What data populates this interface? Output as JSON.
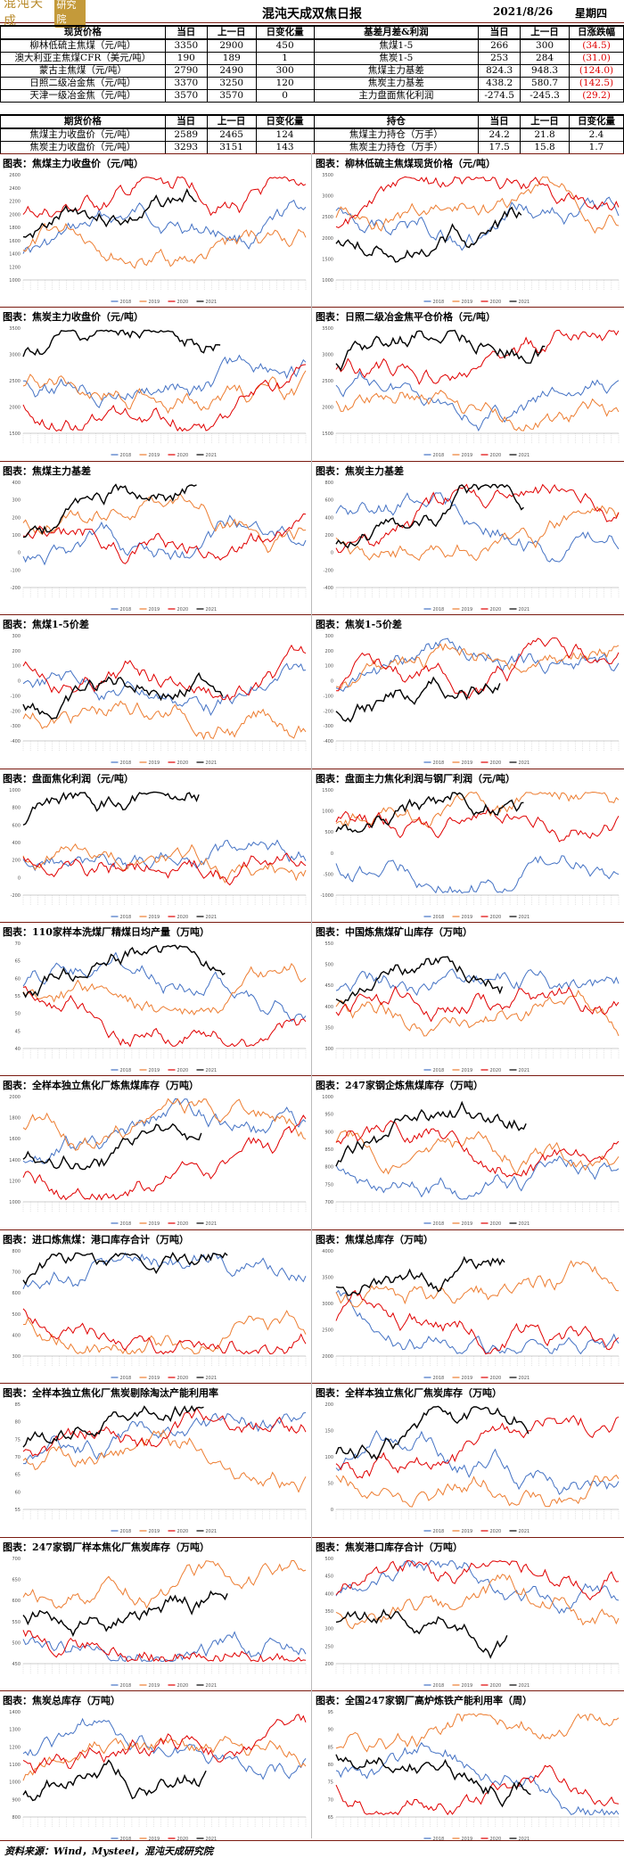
{
  "header": {
    "logo_text": "混沌天成",
    "logo_badge": "研究院",
    "title": "混沌天成双焦日报",
    "date": "2021/8/26",
    "weekday": "星期四"
  },
  "spot_table": {
    "headers": [
      "现货价格",
      "当日",
      "上一日",
      "日变化量",
      "基差月差&利润",
      "当日",
      "上一日",
      "日涨跌幅"
    ],
    "rows": [
      {
        "name": "柳林低硫主焦煤（元/吨）",
        "cur": "3350",
        "prev": "2900",
        "chg": "450",
        "name2": "焦煤1-5",
        "cur2": "266",
        "prev2": "300",
        "chg2": "(34.5)"
      },
      {
        "name": "澳大利亚主焦煤CFR（美元/吨）",
        "cur": "190",
        "prev": "189",
        "chg": "1",
        "name2": "焦炭1-5",
        "cur2": "253",
        "prev2": "284",
        "chg2": "(31.0)"
      },
      {
        "name": "蒙古主焦煤（元/吨）",
        "cur": "2790",
        "prev": "2490",
        "chg": "300",
        "name2": "焦煤主力基差",
        "cur2": "824.3",
        "prev2": "948.3",
        "chg2": "(124.0)"
      },
      {
        "name": "日照二级冶金焦（元/吨）",
        "cur": "3370",
        "prev": "3250",
        "chg": "120",
        "name2": "焦炭主力基差",
        "cur2": "438.2",
        "prev2": "580.7",
        "chg2": "(142.5)"
      },
      {
        "name": "天津一级冶金焦（元/吨）",
        "cur": "3570",
        "prev": "3570",
        "chg": "0",
        "name2": "主力盘面焦化利润",
        "cur2": "-274.5",
        "prev2": "-245.3",
        "chg2": "(29.2)"
      }
    ]
  },
  "futures_table": {
    "headers": [
      "期货价格",
      "当日",
      "上一日",
      "日变化量",
      "持仓",
      "当日",
      "上一日",
      "日变化量"
    ],
    "rows": [
      {
        "name": "焦煤主力收盘价（元/吨）",
        "cur": "2589",
        "prev": "2465",
        "chg": "124",
        "name2": "焦煤主力持仓（万手）",
        "cur2": "24.2",
        "prev2": "21.8",
        "chg2": "2.4"
      },
      {
        "name": "焦炭主力收盘价（元/吨）",
        "cur": "3293",
        "prev": "3151",
        "chg": "143",
        "name2": "焦炭主力持仓（万手）",
        "cur2": "17.5",
        "prev2": "15.8",
        "chg2": "1.7"
      }
    ]
  },
  "legend": [
    "2018",
    "2019",
    "2020",
    "2021"
  ],
  "series_colors": {
    "s2018": "#4472c4",
    "s2019": "#ed7d31",
    "s2020": "#e00000",
    "s2021": "#000000"
  },
  "charts": [
    {
      "title": "图表：焦煤主力收盘价（元/吨）",
      "y_ticks": [
        "2600",
        "2400",
        "2200",
        "2000",
        "1800",
        "1600",
        "1400",
        "1200",
        "1000"
      ]
    },
    {
      "title": "图表：柳林低硫主焦煤现货价格（元/吨）",
      "y_ticks": [
        "3500",
        "3000",
        "2500",
        "2000",
        "1500",
        "1000"
      ]
    },
    {
      "title": "图表：焦炭主力收盘价（元/吨）",
      "y_ticks": [
        "3500",
        "3000",
        "2500",
        "2000",
        "1500"
      ]
    },
    {
      "title": "图表：日照二级冶金焦平仓价格（元/吨）",
      "y_ticks": [
        "3500",
        "3000",
        "2500",
        "2000",
        "1500"
      ]
    },
    {
      "title": "图表：焦煤主力基差",
      "y_ticks": [
        "400",
        "300",
        "200",
        "100",
        "0",
        "-100",
        "-200"
      ]
    },
    {
      "title": "图表：焦炭主力基差",
      "y_ticks": [
        "800",
        "600",
        "400",
        "200",
        "0",
        "-200",
        "-400"
      ]
    },
    {
      "title": "图表：焦煤1-5价差",
      "y_ticks": [
        "300",
        "200",
        "100",
        "0",
        "-100",
        "-200",
        "-300",
        "-400"
      ]
    },
    {
      "title": "图表：焦炭1-5价差",
      "y_ticks": [
        "300",
        "200",
        "100",
        "0",
        "-100",
        "-200",
        "-300",
        "-400"
      ]
    },
    {
      "title": "图表：盘面焦化利润（元/吨）",
      "y_ticks": [
        "1000",
        "800",
        "600",
        "400",
        "200",
        "0",
        "-200"
      ]
    },
    {
      "title": "图表：盘面主力焦化利润与钢厂利润（元/吨）",
      "y_ticks": [
        "1500",
        "1000",
        "500",
        "0",
        "-500",
        "-1000"
      ]
    },
    {
      "title": "图表：110家样本洗煤厂精煤日均产量（万吨）",
      "y_ticks": [
        "70",
        "65",
        "60",
        "55",
        "50",
        "45",
        "40"
      ]
    },
    {
      "title": "图表：中国炼焦煤矿山库存（万吨）",
      "y_ticks": [
        "550",
        "500",
        "450",
        "400",
        "350",
        "300"
      ]
    },
    {
      "title": "图表：全样本独立焦化厂炼焦煤库存（万吨）",
      "y_ticks": [
        "2000",
        "1800",
        "1600",
        "1400",
        "1200",
        "1000"
      ]
    },
    {
      "title": "图表：247家钢企炼焦煤库存（万吨）",
      "y_ticks": [
        "1000",
        "950",
        "900",
        "850",
        "800",
        "750",
        "700"
      ]
    },
    {
      "title": "图表：进口炼焦煤：港口库存合计（万吨）",
      "y_ticks": [
        "800",
        "700",
        "600",
        "500",
        "400",
        "300"
      ]
    },
    {
      "title": "图表：焦煤总库存（万吨）",
      "y_ticks": [
        "4000",
        "3500",
        "3000",
        "2500",
        "2000"
      ]
    },
    {
      "title": "图表：全样本独立焦化厂焦炭剔除淘汰产能利用率",
      "y_ticks": [
        "85",
        "80",
        "75",
        "70",
        "65",
        "60",
        "55"
      ]
    },
    {
      "title": "图表：全样本独立焦化厂焦炭库存（万吨）",
      "y_ticks": [
        "200",
        "150",
        "100",
        "50",
        "0"
      ]
    },
    {
      "title": "图表：247家钢厂样本焦化厂焦炭库存（万吨）",
      "y_ticks": [
        "700",
        "650",
        "600",
        "550",
        "500",
        "450"
      ]
    },
    {
      "title": "图表：焦炭港口库存合计（万吨）",
      "y_ticks": [
        "500",
        "450",
        "400",
        "350",
        "300",
        "250",
        "200"
      ]
    },
    {
      "title": "图表：焦炭总库存（万吨）",
      "y_ticks": [
        "1400",
        "1300",
        "1200",
        "1100",
        "1000",
        "900",
        "800"
      ]
    },
    {
      "title": "图表：全国247家钢厂高炉炼铁产能利用率（周）",
      "y_ticks": [
        "95",
        "90",
        "85",
        "80",
        "75",
        "70",
        "65"
      ]
    }
  ],
  "footer": "资料来源：Wind，Mysteel，混沌天成研究院"
}
